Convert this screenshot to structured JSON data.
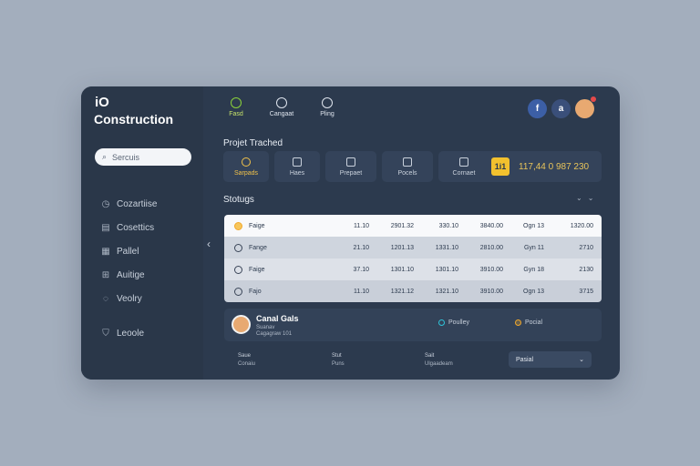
{
  "sidebar": {
    "logo_mark": "iO",
    "brand": "Construction",
    "search_placeholder": "Sercuis",
    "items": [
      {
        "label": "Cozartiise",
        "icon": "clock-icon"
      },
      {
        "label": "Cosettics",
        "icon": "document-icon"
      },
      {
        "label": "Pallel",
        "icon": "grid-icon"
      },
      {
        "label": "Auitige",
        "icon": "chart-icon"
      },
      {
        "label": "Veolry",
        "icon": "chat-icon"
      }
    ],
    "bottom_item": {
      "label": "Leoole",
      "icon": "shield-icon"
    }
  },
  "topbar": {
    "buttons": [
      {
        "label": "Fasd",
        "icon": "power-icon",
        "active": true
      },
      {
        "label": "Cangaat",
        "icon": "building-icon",
        "active": false
      },
      {
        "label": "Pling",
        "icon": "bookmark-icon",
        "active": false
      }
    ],
    "social": {
      "fb": "f",
      "a": "a"
    }
  },
  "projects": {
    "title": "Projet Trached",
    "tiles": [
      {
        "label": "Sarpads",
        "active": true
      },
      {
        "label": "Haes",
        "active": false
      },
      {
        "label": "Prepaet",
        "active": false
      },
      {
        "label": "Pocels",
        "active": false
      },
      {
        "label": "Cornaet",
        "active": false
      }
    ],
    "stat": {
      "badge": "1i1",
      "value": "117,44 0 987 230"
    }
  },
  "status": {
    "title": "Stotugs",
    "rows": [
      {
        "name": "Faige",
        "c1": "11.10",
        "c2": "2901.32",
        "c3": "330.10",
        "c4": "3840.00",
        "c5": "Ogn 13",
        "c6": "1320.00"
      },
      {
        "name": "Fange",
        "c1": "21.10",
        "c2": "1201.13",
        "c3": "1331.10",
        "c4": "2810.00",
        "c5": "Gyn 11",
        "c6": "2710"
      },
      {
        "name": "Faige",
        "c1": "37.10",
        "c2": "1301.10",
        "c3": "1301.10",
        "c4": "3910.00",
        "c5": "Gyn 18",
        "c6": "2130"
      },
      {
        "name": "Fajo",
        "c1": "11.10",
        "c2": "1321.12",
        "c3": "1321.10",
        "c4": "3910.00",
        "c5": "Ogn 13",
        "c6": "3715"
      }
    ]
  },
  "profile": {
    "name": "Canal Gals",
    "sub1": "Suanav",
    "sub2": "Cagagraw 101",
    "status1": "Poulley",
    "status2": "Pocial"
  },
  "footer": {
    "cols": [
      {
        "label": "Saue",
        "value": "Conaiu"
      },
      {
        "label": "Stut",
        "value": "Puns"
      },
      {
        "label": "Sait",
        "value": "Ulgaadeam"
      }
    ],
    "select_value": "Pasial"
  }
}
